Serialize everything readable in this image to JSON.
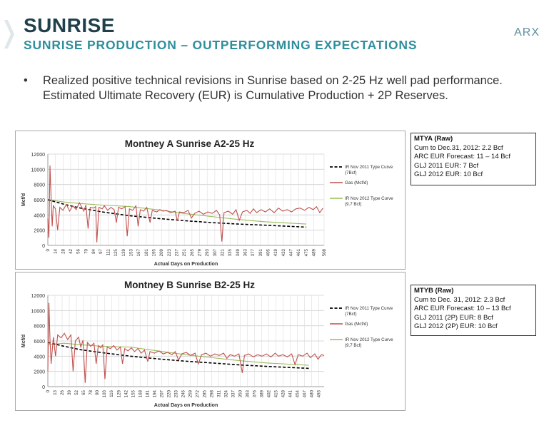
{
  "header": {
    "title": "SUNRISE",
    "subtitle": "SUNRISE PRODUCTION – OUTPERFORMING EXPECTATIONS",
    "logo_text": "ARX"
  },
  "bullet": {
    "marker": "•",
    "text": "Realized positive technical revisions in Sunrise based on 2-25 Hz well pad performance.  Estimated Ultimate Recovery (EUR) is Cumulative Production + 2P Reserves."
  },
  "colors": {
    "title": "#1f3f4a",
    "subtitle": "#2f8f9d",
    "gas": "#c0504d",
    "type2012": "#9bbb59",
    "type2011": "#000000"
  },
  "info_boxes": {
    "a": {
      "heading": "MTYA (Raw)",
      "lines": [
        "Cum to Dec.31, 2012: 2.2 Bcf",
        "ARC EUR Forecast: 11 – 14 Bcf",
        "GLJ 2011 EUR:  7 Bcf",
        "GLJ 2012 EUR:  10 Bcf"
      ]
    },
    "b": {
      "heading": "MTYB (Raw)",
      "lines": [
        "Cum to Dec. 31, 2012: 2.3 Bcf",
        "ARC EUR Forecast: 10 – 13 Bcf",
        "GLJ 2011 (2P) EUR:  8 Bcf",
        "GLJ 2012 (2P) EUR:  10 Bcf"
      ]
    }
  },
  "chart_data": [
    {
      "type": "line",
      "title": "Montney A  Sunrise A2-25 Hz",
      "xlabel": "Actual Days on Production",
      "ylabel": "Mcf/d",
      "ylim": [
        0,
        12000
      ],
      "yticks": [
        0,
        2000,
        4000,
        6000,
        8000,
        10000,
        12000
      ],
      "xlim": [
        0,
        508
      ],
      "xticks": [
        0,
        14,
        28,
        42,
        56,
        70,
        84,
        97,
        111,
        125,
        139,
        153,
        167,
        181,
        195,
        209,
        223,
        237,
        251,
        265,
        279,
        293,
        307,
        321,
        335,
        349,
        363,
        377,
        391,
        405,
        419,
        433,
        447,
        461,
        475,
        489,
        508
      ],
      "grid": true,
      "legend_position": "right",
      "series": [
        {
          "name": "IR Nov 2011 Type Curve (7Bcf)",
          "style": "dashed",
          "color": "#000000",
          "points": [
            [
              0,
              6000
            ],
            [
              30,
              5400
            ],
            [
              60,
              4900
            ],
            [
              100,
              4400
            ],
            [
              150,
              3900
            ],
            [
              200,
              3550
            ],
            [
              250,
              3250
            ],
            [
              300,
              3000
            ],
            [
              350,
              2800
            ],
            [
              400,
              2650
            ],
            [
              475,
              2400
            ]
          ]
        },
        {
          "name": "Gas (Mcf/d)",
          "style": "solid",
          "color": "#c0504d",
          "points": [
            [
              0,
              3500
            ],
            [
              2,
              1000
            ],
            [
              4,
              10500
            ],
            [
              6,
              6200
            ],
            [
              8,
              2500
            ],
            [
              10,
              5200
            ],
            [
              14,
              4800
            ],
            [
              18,
              2000
            ],
            [
              22,
              5000
            ],
            [
              28,
              4600
            ],
            [
              34,
              5400
            ],
            [
              40,
              4500
            ],
            [
              46,
              5200
            ],
            [
              52,
              4700
            ],
            [
              58,
              5600
            ],
            [
              62,
              5100
            ],
            [
              66,
              4500
            ],
            [
              70,
              5300
            ],
            [
              74,
              2200
            ],
            [
              78,
              5000
            ],
            [
              84,
              4900
            ],
            [
              88,
              5100
            ],
            [
              90,
              400
            ],
            [
              94,
              5000
            ],
            [
              100,
              4800
            ],
            [
              104,
              5200
            ],
            [
              110,
              4600
            ],
            [
              116,
              5000
            ],
            [
              122,
              4700
            ],
            [
              126,
              3000
            ],
            [
              130,
              5000
            ],
            [
              136,
              4800
            ],
            [
              142,
              5100
            ],
            [
              146,
              1200
            ],
            [
              150,
              4800
            ],
            [
              156,
              4600
            ],
            [
              162,
              5200
            ],
            [
              166,
              2500
            ],
            [
              170,
              4700
            ],
            [
              176,
              4500
            ],
            [
              182,
              5000
            ],
            [
              188,
              3000
            ],
            [
              192,
              4600
            ],
            [
              200,
              4400
            ],
            [
              206,
              4700
            ],
            [
              212,
              4500
            ],
            [
              218,
              4600
            ],
            [
              226,
              4300
            ],
            [
              234,
              4500
            ],
            [
              238,
              3200
            ],
            [
              242,
              4400
            ],
            [
              250,
              4300
            ],
            [
              258,
              4600
            ],
            [
              264,
              3600
            ],
            [
              270,
              4200
            ],
            [
              278,
              4500
            ],
            [
              286,
              4100
            ],
            [
              294,
              4400
            ],
            [
              302,
              4200
            ],
            [
              310,
              4600
            ],
            [
              316,
              4000
            ],
            [
              320,
              500
            ],
            [
              324,
              4300
            ],
            [
              332,
              4500
            ],
            [
              340,
              4100
            ],
            [
              346,
              4700
            ],
            [
              352,
              3300
            ],
            [
              358,
              4400
            ],
            [
              366,
              4600
            ],
            [
              372,
              4200
            ],
            [
              378,
              4800
            ],
            [
              384,
              4300
            ],
            [
              392,
              4700
            ],
            [
              400,
              4400
            ],
            [
              408,
              4800
            ],
            [
              416,
              4300
            ],
            [
              424,
              4900
            ],
            [
              432,
              4500
            ],
            [
              440,
              4700
            ],
            [
              448,
              4400
            ],
            [
              456,
              4800
            ],
            [
              464,
              4900
            ],
            [
              472,
              4600
            ],
            [
              480,
              5000
            ],
            [
              488,
              4700
            ],
            [
              494,
              5100
            ],
            [
              500,
              4300
            ],
            [
              506,
              4900
            ]
          ]
        },
        {
          "name": "IR Nov 2012 Type Curve (9.7 Bcf)",
          "style": "solid",
          "color": "#9bbb59",
          "points": [
            [
              0,
              6000
            ],
            [
              30,
              5700
            ],
            [
              60,
              5500
            ],
            [
              100,
              5300
            ],
            [
              150,
              5100
            ],
            [
              200,
              4700
            ],
            [
              250,
              4200
            ],
            [
              300,
              3800
            ],
            [
              350,
              3400
            ],
            [
              400,
              3100
            ],
            [
              475,
              2800
            ]
          ]
        }
      ]
    },
    {
      "type": "line",
      "title": "Montney B  Sunrise B2-25 Hz",
      "xlabel": "Actual Days on Production",
      "ylabel": "Mcf/d",
      "ylim": [
        0,
        12000
      ],
      "yticks": [
        0,
        2000,
        4000,
        6000,
        8000,
        10000,
        12000
      ],
      "xlim": [
        0,
        503
      ],
      "xticks": [
        0,
        13,
        26,
        39,
        52,
        65,
        78,
        90,
        103,
        116,
        129,
        142,
        155,
        168,
        181,
        194,
        207,
        220,
        233,
        246,
        259,
        272,
        285,
        298,
        311,
        324,
        337,
        350,
        363,
        376,
        389,
        402,
        415,
        428,
        441,
        454,
        467,
        480,
        493
      ],
      "grid": true,
      "legend_position": "right",
      "series": [
        {
          "name": "IR Nov 2011 Type Curve (7Bcf)",
          "style": "dashed",
          "color": "#000000",
          "points": [
            [
              0,
              5800
            ],
            [
              30,
              5300
            ],
            [
              60,
              4850
            ],
            [
              100,
              4450
            ],
            [
              150,
              4000
            ],
            [
              200,
              3650
            ],
            [
              250,
              3350
            ],
            [
              300,
              3100
            ],
            [
              350,
              2850
            ],
            [
              400,
              2650
            ],
            [
              475,
              2400
            ]
          ]
        },
        {
          "name": "Gas (Mcf/d)",
          "style": "solid",
          "color": "#c0504d",
          "points": [
            [
              0,
              2000
            ],
            [
              2,
              11000
            ],
            [
              4,
              6000
            ],
            [
              6,
              3000
            ],
            [
              10,
              6500
            ],
            [
              14,
              4000
            ],
            [
              18,
              6800
            ],
            [
              24,
              6400
            ],
            [
              30,
              7000
            ],
            [
              36,
              6200
            ],
            [
              42,
              6800
            ],
            [
              46,
              2000
            ],
            [
              50,
              6000
            ],
            [
              56,
              6500
            ],
            [
              60,
              5200
            ],
            [
              64,
              6100
            ],
            [
              68,
              500
            ],
            [
              72,
              5800
            ],
            [
              78,
              5300
            ],
            [
              84,
              5700
            ],
            [
              88,
              3000
            ],
            [
              92,
              5400
            ],
            [
              96,
              5100
            ],
            [
              100,
              5500
            ],
            [
              104,
              1000
            ],
            [
              108,
              5200
            ],
            [
              114,
              5000
            ],
            [
              120,
              5400
            ],
            [
              126,
              4800
            ],
            [
              132,
              5200
            ],
            [
              136,
              3000
            ],
            [
              140,
              5000
            ],
            [
              146,
              4700
            ],
            [
              152,
              5100
            ],
            [
              158,
              4600
            ],
            [
              164,
              5000
            ],
            [
              170,
              4400
            ],
            [
              176,
              4800
            ],
            [
              182,
              3300
            ],
            [
              186,
              4600
            ],
            [
              194,
              4400
            ],
            [
              202,
              4700
            ],
            [
              210,
              4300
            ],
            [
              218,
              4500
            ],
            [
              226,
              4200
            ],
            [
              232,
              4600
            ],
            [
              238,
              3500
            ],
            [
              244,
              4300
            ],
            [
              252,
              4500
            ],
            [
              260,
              4100
            ],
            [
              268,
              4400
            ],
            [
              274,
              3000
            ],
            [
              280,
              4200
            ],
            [
              288,
              4400
            ],
            [
              296,
              4000
            ],
            [
              304,
              4300
            ],
            [
              312,
              4100
            ],
            [
              320,
              4400
            ],
            [
              326,
              3700
            ],
            [
              332,
              4200
            ],
            [
              340,
              4000
            ],
            [
              348,
              4300
            ],
            [
              354,
              1800
            ],
            [
              358,
              4100
            ],
            [
              366,
              4300
            ],
            [
              374,
              3900
            ],
            [
              382,
              4200
            ],
            [
              390,
              4000
            ],
            [
              398,
              4300
            ],
            [
              406,
              3900
            ],
            [
              414,
              4400
            ],
            [
              420,
              4000
            ],
            [
              428,
              4200
            ],
            [
              436,
              3900
            ],
            [
              444,
              4300
            ],
            [
              450,
              2900
            ],
            [
              456,
              4200
            ],
            [
              464,
              4000
            ],
            [
              472,
              4400
            ],
            [
              478,
              3800
            ],
            [
              486,
              4300
            ],
            [
              492,
              3600
            ],
            [
              498,
              4200
            ],
            [
              503,
              4100
            ]
          ]
        },
        {
          "name": "IR Nov 2012 Type Curve (9.7 Bcf)",
          "style": "solid",
          "color": "#9bbb59",
          "points": [
            [
              0,
              5500
            ],
            [
              30,
              5700
            ],
            [
              60,
              5500
            ],
            [
              100,
              5300
            ],
            [
              150,
              5200
            ],
            [
              200,
              4700
            ],
            [
              250,
              4200
            ],
            [
              300,
              3800
            ],
            [
              350,
              3400
            ],
            [
              400,
              3100
            ],
            [
              475,
              2800
            ]
          ]
        }
      ]
    }
  ]
}
